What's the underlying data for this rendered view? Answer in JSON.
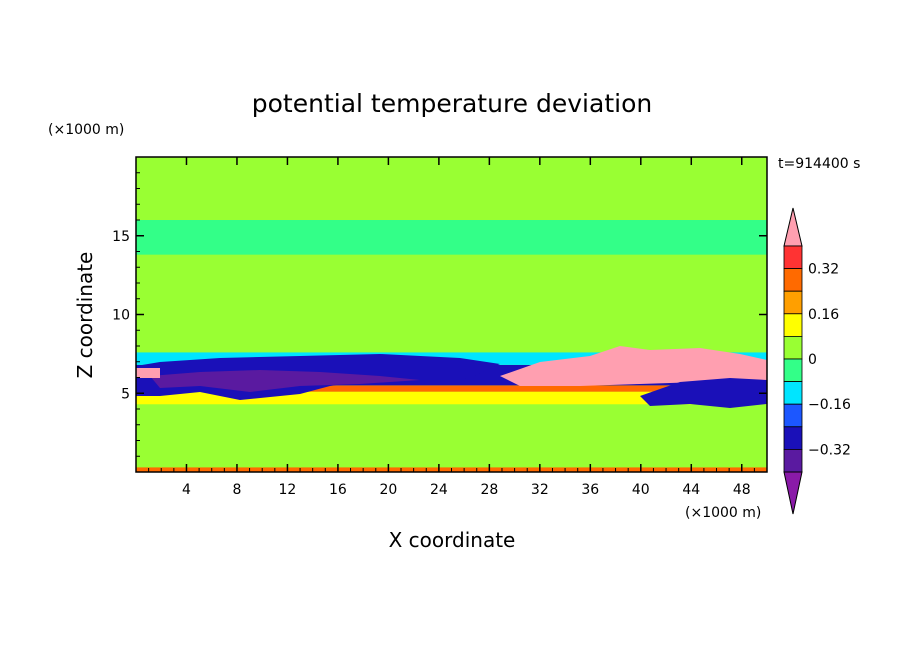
{
  "chart_data": {
    "type": "heatmap",
    "title": "potential temperature deviation",
    "xlabel": "X coordinate",
    "ylabel": "Z coordinate",
    "x_unit": "(×1000 m)",
    "y_unit": "(×1000 m)",
    "time_label": "t=914400 s",
    "xlim": [
      0,
      50
    ],
    "ylim": [
      0,
      20
    ],
    "x_ticks": [
      4,
      8,
      12,
      16,
      20,
      24,
      28,
      32,
      36,
      40,
      44,
      48
    ],
    "y_ticks": [
      5,
      10,
      15
    ],
    "colorbar": {
      "levels": [
        -0.4,
        -0.32,
        -0.24,
        -0.16,
        -0.08,
        0,
        0.08,
        0.16,
        0.24,
        0.32,
        0.4
      ],
      "labels": [
        "0.32",
        "0.16",
        "0",
        "−0.16",
        "−0.32"
      ],
      "label_values": [
        0.32,
        0.16,
        0,
        -0.16,
        -0.32
      ],
      "colors": [
        "#ff9fb0",
        "#ff3333",
        "#ff6a00",
        "#ff9f00",
        "#ffff00",
        "#99ff33",
        "#33ff88",
        "#00e5ff",
        "#1c57ff",
        "#1a10b8",
        "#5a1aa0",
        "#8a1aa8"
      ],
      "extend": "both"
    },
    "bands": [
      {
        "z": [
          0,
          0.3
        ],
        "level": "#ff6a00"
      },
      {
        "z": [
          0.3,
          4.3
        ],
        "level": "#99ff33"
      },
      {
        "z": [
          4.3,
          5.1
        ],
        "level": "#ffff00"
      },
      {
        "z": [
          5.1,
          5.5
        ],
        "level": "#ff6a00"
      },
      {
        "z": [
          5.5,
          6.8
        ],
        "level": "#1a10b8"
      },
      {
        "z": [
          6.8,
          7.6
        ],
        "level": "#00e5ff"
      },
      {
        "z": [
          7.6,
          13.8
        ],
        "level": "#99ff33"
      },
      {
        "z": [
          13.8,
          16.0
        ],
        "level": "#33ff88"
      },
      {
        "z": [
          16.0,
          20.0
        ],
        "level": "#99ff33"
      }
    ]
  }
}
